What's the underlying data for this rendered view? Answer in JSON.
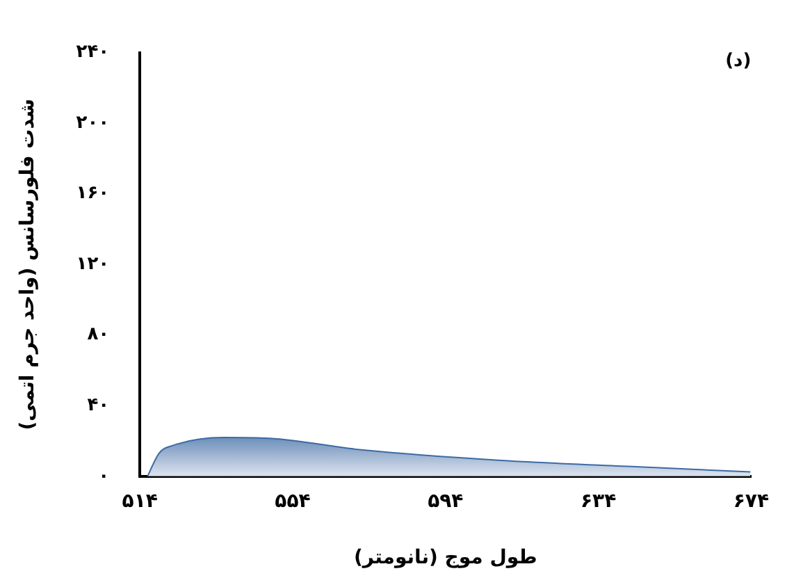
{
  "chart_data": {
    "type": "area",
    "xlabel": "طول موج (نانومتر)",
    "ylabel": "شدت فلورسانس (واحد جرم اتمی)",
    "annotations": [
      "(د)"
    ],
    "x": [
      516,
      519,
      522.7,
      536,
      548,
      572,
      608.6,
      644.8,
      673.8
    ],
    "series": [
      {
        "color": "#3c6aa3",
        "values": [
          0,
          13,
          17.5,
          22,
          21.5,
          15,
          9,
          5.3,
          2.5
        ]
      }
    ],
    "xlim": [
      514,
      674
    ],
    "xticks": [
      {
        "value": 514,
        "label": "۵۱۴"
      },
      {
        "value": 554,
        "label": "۵۵۴"
      },
      {
        "value": 594,
        "label": "۵۹۴"
      },
      {
        "value": 634,
        "label": "۶۳۴"
      },
      {
        "value": 674,
        "label": "۶۷۴"
      }
    ],
    "ylim": [
      0,
      240
    ],
    "yticks": [
      {
        "value": 0,
        "label": "۰"
      },
      {
        "value": 40,
        "label": "۴۰"
      },
      {
        "value": 80,
        "label": "۸۰"
      },
      {
        "value": 120,
        "label": "۱۲۰"
      },
      {
        "value": 160,
        "label": "۱۶۰"
      },
      {
        "value": 200,
        "label": "۲۰۰"
      },
      {
        "value": 240,
        "label": "۲۴۰"
      }
    ],
    "grid": false,
    "legend": false
  }
}
